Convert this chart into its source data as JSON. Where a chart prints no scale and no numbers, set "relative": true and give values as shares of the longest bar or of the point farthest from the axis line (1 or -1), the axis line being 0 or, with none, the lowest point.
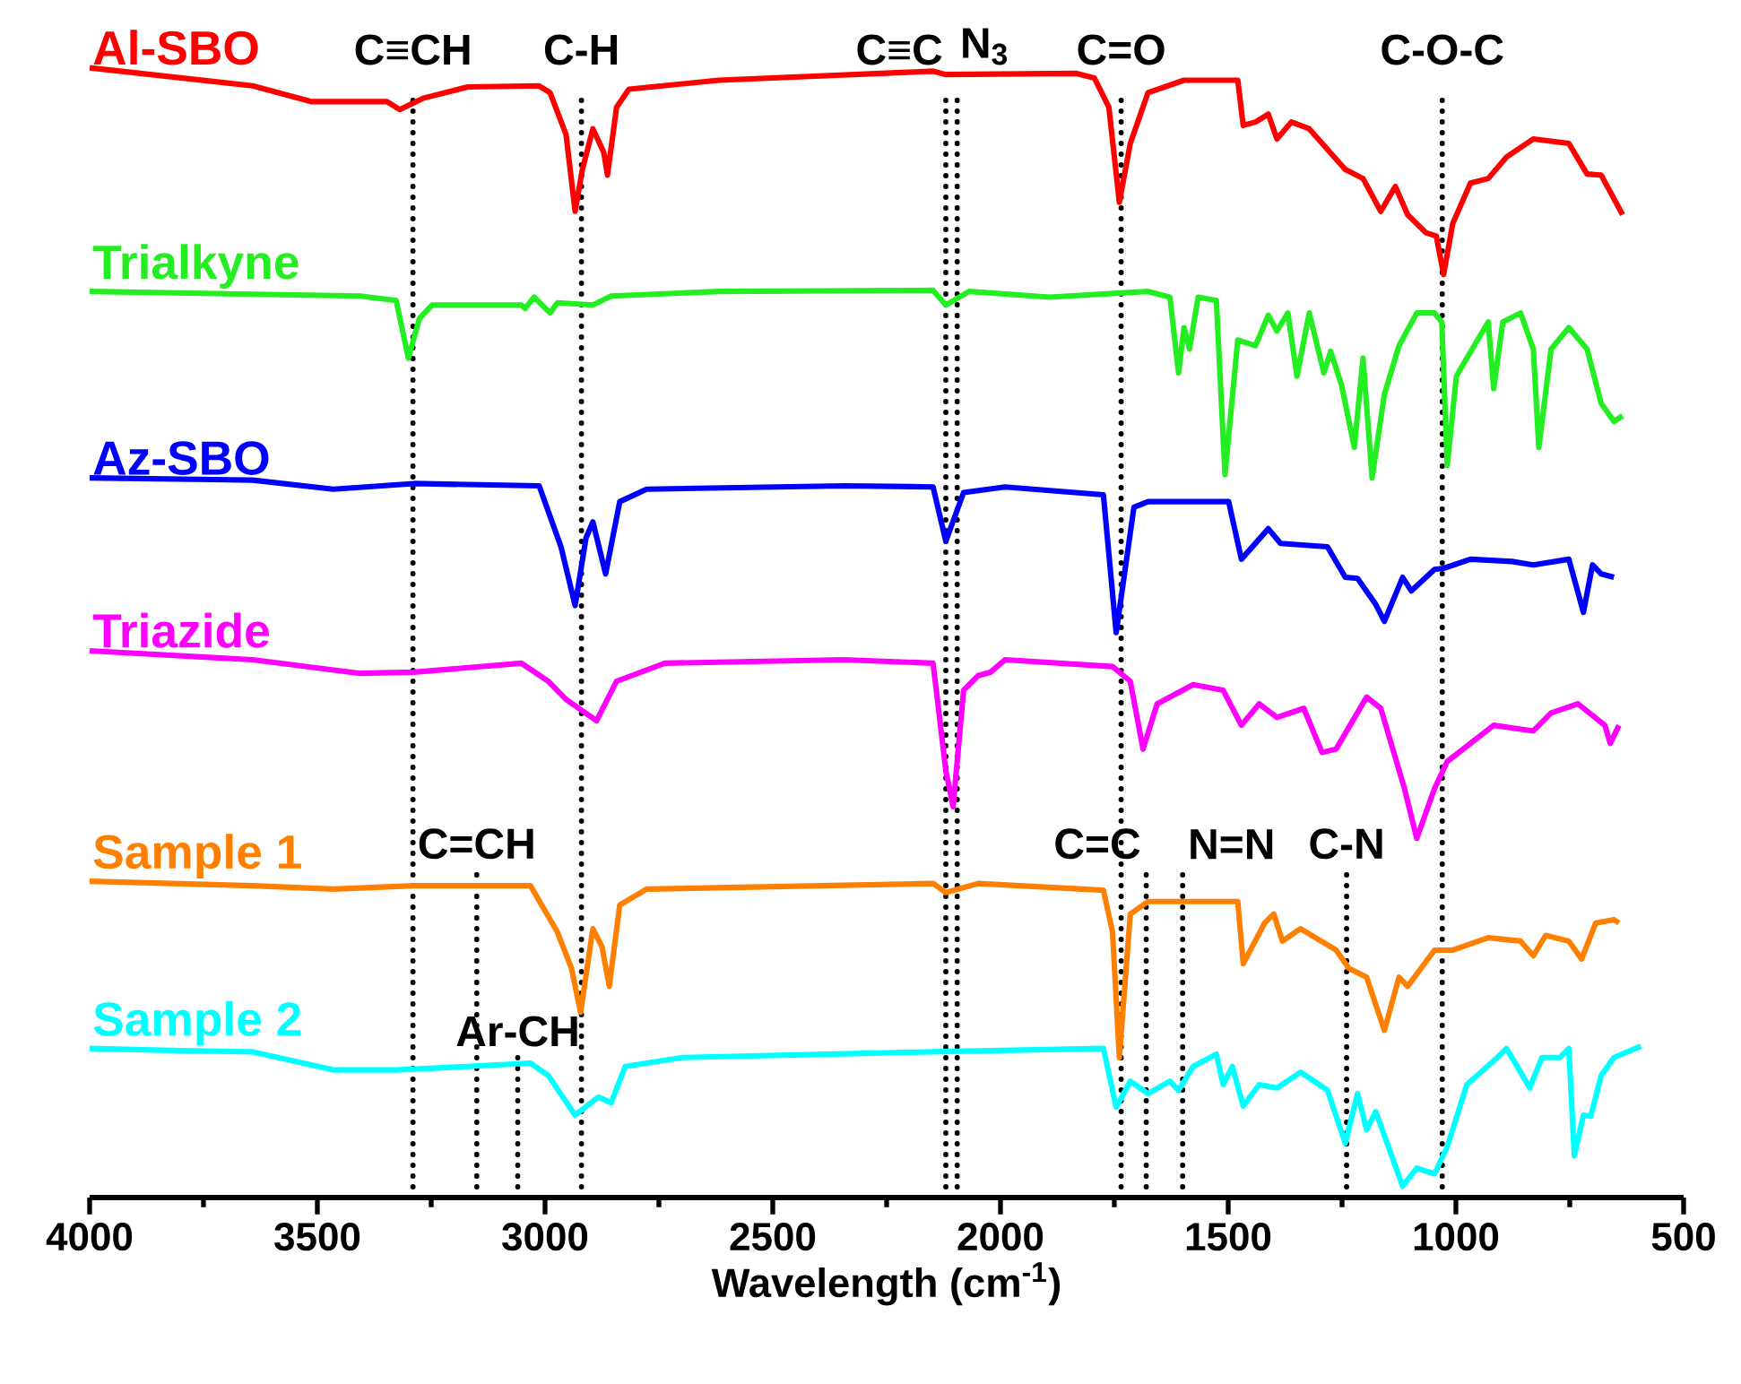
{
  "chart_data": {
    "type": "line",
    "relative": true,
    "legend": false,
    "grid": false,
    "xlabel": "Wavelength (cm$^{-1}$)",
    "xlim": [
      4000,
      500
    ],
    "xticks": [
      4000,
      3500,
      3000,
      2500,
      2000,
      1500,
      1000,
      500
    ],
    "series": [
      {
        "name": "Al-SBO",
        "color": "#ff0000",
        "x": [
          4000,
          3642,
          3512,
          3347,
          3319,
          3268,
          3170,
          3013,
          2989,
          2954,
          2934,
          2918,
          2895,
          2871,
          2863,
          2843,
          2816,
          2619,
          2148,
          2120,
          1833,
          1794,
          1762,
          1739,
          1715,
          1676,
          1597,
          1479,
          1467,
          1440,
          1412,
          1393,
          1361,
          1322,
          1243,
          1204,
          1165,
          1133,
          1106,
          1066,
          1043,
          1027,
          1007,
          968,
          929,
          889,
          830,
          752,
          712,
          681,
          634
        ],
        "values": [
          1.0,
          0.984,
          0.97,
          0.97,
          0.963,
          0.973,
          0.983,
          0.984,
          0.978,
          0.941,
          0.873,
          0.91,
          0.946,
          0.925,
          0.905,
          0.965,
          0.981,
          0.989,
          0.997,
          0.994,
          0.995,
          0.991,
          0.965,
          0.881,
          0.933,
          0.978,
          0.989,
          0.989,
          0.949,
          0.952,
          0.959,
          0.937,
          0.952,
          0.946,
          0.91,
          0.902,
          0.873,
          0.895,
          0.87,
          0.854,
          0.851,
          0.817,
          0.862,
          0.898,
          0.902,
          0.921,
          0.937,
          0.933,
          0.906,
          0.905,
          0.87
        ]
      },
      {
        "name": "Trialkyne",
        "color": "#22ee22",
        "x": [
          4000,
          3406,
          3327,
          3300,
          3276,
          3248,
          3052,
          3044,
          3024,
          2989,
          2973,
          2895,
          2855,
          2619,
          2148,
          2120,
          2069,
          1892,
          1676,
          1628,
          1609,
          1597,
          1585,
          1566,
          1526,
          1507,
          1479,
          1440,
          1412,
          1393,
          1369,
          1349,
          1322,
          1290,
          1275,
          1251,
          1223,
          1204,
          1184,
          1157,
          1125,
          1086,
          1047,
          1031,
          1019,
          999,
          976,
          929,
          917,
          897,
          858,
          830,
          818,
          791,
          752,
          712,
          681,
          653,
          634
        ],
        "values": [
          0.802,
          0.798,
          0.794,
          0.743,
          0.778,
          0.79,
          0.79,
          0.787,
          0.797,
          0.783,
          0.792,
          0.79,
          0.798,
          0.802,
          0.803,
          0.79,
          0.802,
          0.797,
          0.802,
          0.797,
          0.73,
          0.77,
          0.751,
          0.797,
          0.794,
          0.64,
          0.759,
          0.754,
          0.781,
          0.767,
          0.783,
          0.727,
          0.783,
          0.73,
          0.749,
          0.719,
          0.664,
          0.743,
          0.637,
          0.711,
          0.754,
          0.783,
          0.783,
          0.775,
          0.648,
          0.727,
          0.743,
          0.775,
          0.716,
          0.775,
          0.783,
          0.751,
          0.664,
          0.751,
          0.77,
          0.751,
          0.703,
          0.687,
          0.692
        ]
      },
      {
        "name": "Az-SBO",
        "color": "#0000ff",
        "x": [
          4000,
          3642,
          3465,
          3288,
          3013,
          2965,
          2934,
          2910,
          2895,
          2867,
          2836,
          2777,
          2344,
          2148,
          2120,
          2081,
          1990,
          1774,
          1746,
          1707,
          1676,
          1499,
          1471,
          1412,
          1385,
          1282,
          1243,
          1216,
          1176,
          1157,
          1117,
          1098,
          1047,
          1027,
          968,
          877,
          830,
          752,
          720,
          700,
          681,
          653
        ],
        "values": [
          0.637,
          0.635,
          0.627,
          0.632,
          0.63,
          0.576,
          0.524,
          0.584,
          0.598,
          0.552,
          0.616,
          0.627,
          0.63,
          0.629,
          0.581,
          0.624,
          0.629,
          0.622,
          0.5,
          0.611,
          0.616,
          0.616,
          0.565,
          0.592,
          0.579,
          0.576,
          0.549,
          0.548,
          0.525,
          0.51,
          0.549,
          0.537,
          0.556,
          0.557,
          0.565,
          0.563,
          0.56,
          0.565,
          0.518,
          0.56,
          0.552,
          0.549
        ]
      },
      {
        "name": "Triazide",
        "color": "#ff00ff",
        "x": [
          4000,
          3642,
          3406,
          3288,
          3052,
          2993,
          2954,
          2887,
          2843,
          2737,
          2344,
          2148,
          2120,
          2104,
          2081,
          2049,
          2022,
          1990,
          1754,
          1715,
          1687,
          1656,
          1577,
          1511,
          1471,
          1432,
          1393,
          1334,
          1294,
          1263,
          1196,
          1165,
          1113,
          1086,
          1047,
          1019,
          968,
          917,
          830,
          791,
          732,
          673,
          661,
          642
        ],
        "values": [
          0.484,
          0.476,
          0.464,
          0.465,
          0.473,
          0.457,
          0.441,
          0.422,
          0.457,
          0.473,
          0.476,
          0.473,
          0.378,
          0.346,
          0.449,
          0.462,
          0.465,
          0.476,
          0.47,
          0.457,
          0.397,
          0.437,
          0.454,
          0.449,
          0.418,
          0.437,
          0.425,
          0.433,
          0.394,
          0.397,
          0.443,
          0.433,
          0.362,
          0.318,
          0.362,
          0.386,
          0.402,
          0.418,
          0.413,
          0.429,
          0.437,
          0.418,
          0.402,
          0.418
        ]
      },
      {
        "name": "Sample 1",
        "color": "#ff8000",
        "x": [
          4000,
          3642,
          3465,
          3288,
          3032,
          2973,
          2942,
          2922,
          2895,
          2875,
          2859,
          2836,
          2777,
          2148,
          2120,
          2049,
          1774,
          1754,
          1739,
          1715,
          1676,
          1479,
          1467,
          1420,
          1400,
          1381,
          1341,
          1263,
          1235,
          1196,
          1157,
          1125,
          1106,
          1047,
          1007,
          929,
          858,
          830,
          803,
          752,
          724,
          693,
          653,
          642
        ],
        "values": [
          0.28,
          0.276,
          0.273,
          0.276,
          0.276,
          0.235,
          0.203,
          0.164,
          0.238,
          0.222,
          0.187,
          0.259,
          0.273,
          0.278,
          0.27,
          0.278,
          0.272,
          0.235,
          0.124,
          0.251,
          0.262,
          0.262,
          0.207,
          0.243,
          0.251,
          0.227,
          0.238,
          0.219,
          0.203,
          0.195,
          0.148,
          0.195,
          0.187,
          0.219,
          0.219,
          0.23,
          0.227,
          0.214,
          0.232,
          0.227,
          0.211,
          0.243,
          0.246,
          0.243
        ]
      },
      {
        "name": "Sample 2",
        "color": "#00ffff",
        "x": [
          4000,
          3799,
          3642,
          3465,
          3327,
          3170,
          3032,
          2993,
          2934,
          2883,
          2855,
          2824,
          2698,
          2148,
          1774,
          1746,
          1715,
          1676,
          1628,
          1609,
          1577,
          1526,
          1511,
          1491,
          1467,
          1432,
          1393,
          1341,
          1282,
          1243,
          1216,
          1196,
          1176,
          1117,
          1086,
          1047,
          1019,
          976,
          909,
          889,
          858,
          838,
          811,
          771,
          752,
          740,
          720,
          704,
          681,
          653,
          594
        ],
        "values": [
          0.132,
          0.13,
          0.129,
          0.113,
          0.113,
          0.116,
          0.119,
          0.108,
          0.073,
          0.089,
          0.084,
          0.116,
          0.124,
          0.129,
          0.132,
          0.08,
          0.103,
          0.092,
          0.103,
          0.095,
          0.116,
          0.127,
          0.1,
          0.116,
          0.081,
          0.1,
          0.097,
          0.111,
          0.095,
          0.048,
          0.092,
          0.06,
          0.076,
          0.01,
          0.026,
          0.021,
          0.045,
          0.1,
          0.124,
          0.132,
          0.111,
          0.097,
          0.124,
          0.124,
          0.132,
          0.037,
          0.073,
          0.072,
          0.108,
          0.124,
          0.134
        ]
      }
    ],
    "ref_lines": [
      {
        "axis": "x",
        "value": 3290,
        "label": "C≡CH",
        "line_style": "dotted"
      },
      {
        "axis": "x",
        "value": 2920,
        "label": "C-H",
        "line_style": "dotted"
      },
      {
        "axis": "x",
        "value": 2120,
        "label": "C≡C",
        "line_style": "dotted"
      },
      {
        "axis": "x",
        "value": 2095,
        "label": "N$_{3}$",
        "line_style": "dotted"
      },
      {
        "axis": "x",
        "value": 1735,
        "label": "C=O",
        "line_style": "dotted"
      },
      {
        "axis": "x",
        "value": 1030,
        "label": "C-O-C",
        "line_style": "dotted"
      },
      {
        "axis": "x",
        "value": 3150,
        "line_style": "dotted"
      },
      {
        "axis": "x",
        "value": 3060,
        "line_style": "dotted"
      },
      {
        "axis": "x",
        "value": 1680,
        "line_style": "dotted"
      },
      {
        "axis": "x",
        "value": 1600,
        "line_style": "dotted"
      },
      {
        "axis": "x",
        "value": 1240,
        "line_style": "dotted"
      }
    ],
    "annotations": [
      {
        "text": "C=CH",
        "x": 3150,
        "y": 0.295
      },
      {
        "text": "Ar-CH",
        "x": 3060,
        "y": 0.129
      },
      {
        "text": "C=C",
        "x": 1680,
        "y": 0.295
      },
      {
        "text": "N=N",
        "x": 1600,
        "y": 0.295
      },
      {
        "text": "C-N",
        "x": 1240,
        "y": 0.295
      }
    ]
  }
}
